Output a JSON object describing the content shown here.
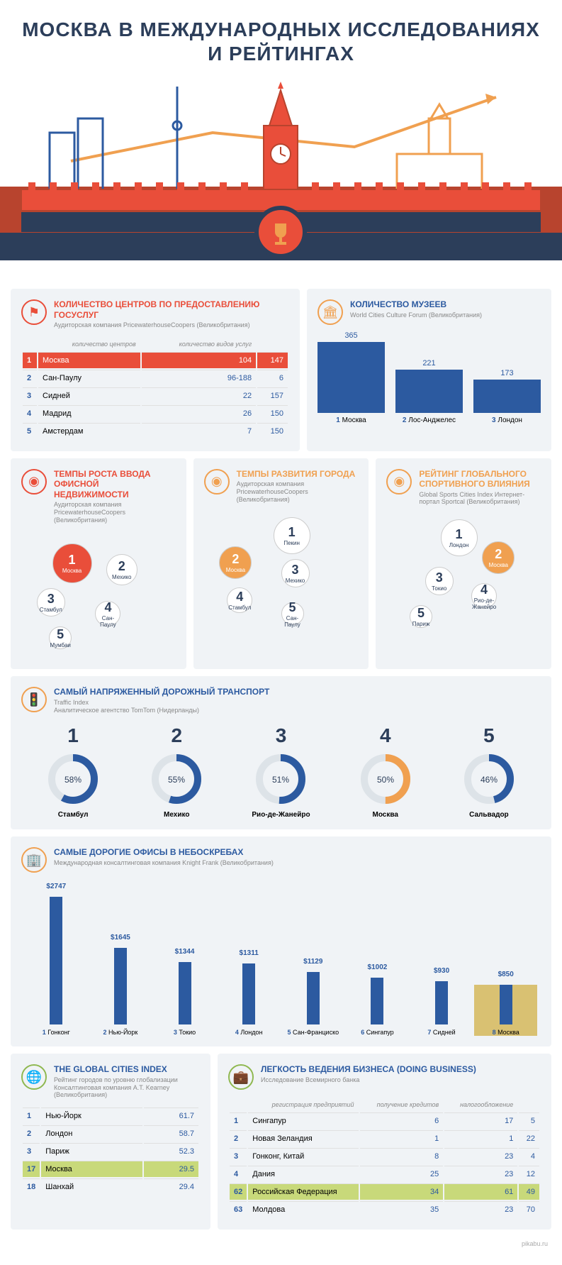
{
  "title": "МОСКВА В МЕЖДУНАРОДНЫХ ИССЛЕДОВАНИЯХ И РЕЙТИНГАХ",
  "colors": {
    "navy": "#2c3e5a",
    "blue": "#2c5aa0",
    "red": "#e94e3a",
    "orange": "#f0a050",
    "gold": "#d9c172",
    "green": "#c8d97a",
    "lightbg": "#f0f3f6",
    "grey": "#888"
  },
  "centers": {
    "title": "КОЛИЧЕСТВО ЦЕНТРОВ ПО ПРЕДОСТАВЛЕНИЮ ГОСУСЛУГ",
    "sub": "Аудиторская компания PricewaterhouseCoopers (Великобритания)",
    "icon_color": "#e94e3a",
    "cols": [
      "",
      "количество центров",
      "количество видов услуг"
    ],
    "rows": [
      {
        "n": 1,
        "city": "Москва",
        "a": "104",
        "b": "147",
        "hl": true
      },
      {
        "n": 2,
        "city": "Сан-Паулу",
        "a": "96-188",
        "b": "6"
      },
      {
        "n": 3,
        "city": "Сидней",
        "a": "22",
        "b": "157"
      },
      {
        "n": 4,
        "city": "Мадрид",
        "a": "26",
        "b": "150"
      },
      {
        "n": 5,
        "city": "Амстердам",
        "a": "7",
        "b": "150"
      }
    ]
  },
  "museums": {
    "title": "КОЛИЧЕСТВО МУЗЕЕВ",
    "sub": "World Cities Culture Forum (Великобритания)",
    "icon_color": "#f0a050",
    "max": 365,
    "bars": [
      {
        "n": 1,
        "city": "Москва",
        "v": 365
      },
      {
        "n": 2,
        "city": "Лос-Анджелес",
        "v": 221
      },
      {
        "n": 3,
        "city": "Лондон",
        "v": 173
      }
    ]
  },
  "bubbles": [
    {
      "title": "ТЕМПЫ РОСТА ВВОДА ОФИСНОЙ НЕДВИЖИМОСТИ",
      "sub": "Аудиторская компания PricewaterhouseCoopers (Великобритания)",
      "icon_color": "#e94e3a",
      "items": [
        {
          "r": 1,
          "city": "Москва",
          "x": 20,
          "y": 10,
          "size": 56,
          "fill": "#e94e3a",
          "fc": "#fff"
        },
        {
          "r": 2,
          "city": "Мехико",
          "x": 55,
          "y": 18,
          "size": 44,
          "fill": "#fff",
          "fc": "#2c3e5a"
        },
        {
          "r": 3,
          "city": "Стамбул",
          "x": 10,
          "y": 45,
          "size": 40,
          "fill": "#fff",
          "fc": "#2c3e5a"
        },
        {
          "r": 4,
          "city": "Сан-Паулу",
          "x": 48,
          "y": 55,
          "size": 36,
          "fill": "#fff",
          "fc": "#2c3e5a"
        },
        {
          "r": 5,
          "city": "Мумбаи",
          "x": 18,
          "y": 75,
          "size": 32,
          "fill": "#fff",
          "fc": "#2c3e5a"
        }
      ]
    },
    {
      "title": "ТЕМПЫ РАЗВИТИЯ ГОРОДА",
      "sub": "Аудиторская компания PricewaterhouseCoopers (Великобритания)",
      "icon_color": "#f0a050",
      "items": [
        {
          "r": 1,
          "city": "Пекин",
          "x": 45,
          "y": 5,
          "size": 52,
          "fill": "#fff",
          "fc": "#2c3e5a"
        },
        {
          "r": 2,
          "city": "Москва",
          "x": 10,
          "y": 28,
          "size": 46,
          "fill": "#f0a050",
          "fc": "#fff"
        },
        {
          "r": 3,
          "city": "Мехико",
          "x": 50,
          "y": 38,
          "size": 40,
          "fill": "#fff",
          "fc": "#2c3e5a"
        },
        {
          "r": 4,
          "city": "Стамбул",
          "x": 15,
          "y": 60,
          "size": 36,
          "fill": "#fff",
          "fc": "#2c3e5a"
        },
        {
          "r": 5,
          "city": "Сан-Паулу",
          "x": 50,
          "y": 72,
          "size": 32,
          "fill": "#fff",
          "fc": "#2c3e5a"
        }
      ]
    },
    {
      "title": "РЕЙТИНГ ГЛОБАЛЬНОГО СПОРТИВНОГО ВЛИЯНИЯ",
      "sub": "Global Sports Cities Index Интернет-портал Sportcal (Великобритания)",
      "icon_color": "#f0a050",
      "items": [
        {
          "r": 1,
          "city": "Лондон",
          "x": 35,
          "y": 5,
          "size": 52,
          "fill": "#fff",
          "fc": "#2c3e5a"
        },
        {
          "r": 2,
          "city": "Москва",
          "x": 62,
          "y": 22,
          "size": 46,
          "fill": "#f0a050",
          "fc": "#fff"
        },
        {
          "r": 3,
          "city": "Токио",
          "x": 25,
          "y": 42,
          "size": 40,
          "fill": "#fff",
          "fc": "#2c3e5a"
        },
        {
          "r": 4,
          "city": "Рио-де-Жанейро",
          "x": 55,
          "y": 55,
          "size": 36,
          "fill": "#fff",
          "fc": "#2c3e5a"
        },
        {
          "r": 5,
          "city": "Париж",
          "x": 15,
          "y": 72,
          "size": 32,
          "fill": "#fff",
          "fc": "#2c3e5a"
        }
      ]
    }
  ],
  "traffic": {
    "title": "САМЫЙ НАПРЯЖЕННЫЙ ДОРОЖНЫЙ ТРАНСПОРТ",
    "sub": "Traffic Index\nАналитическое агентство TomTom (Нидерланды)",
    "icon_color": "#f0a050",
    "ring_default": "#2c5aa0",
    "ring_hl": "#f0a050",
    "ring_bg": "#dde3e8",
    "items": [
      {
        "r": 1,
        "city": "Стамбул",
        "pct": 58
      },
      {
        "r": 2,
        "city": "Мехико",
        "pct": 55
      },
      {
        "r": 3,
        "city": "Рио-де-Жанейро",
        "pct": 51
      },
      {
        "r": 4,
        "city": "Москва",
        "pct": 50,
        "hl": true
      },
      {
        "r": 5,
        "city": "Сальвадор",
        "pct": 46
      }
    ]
  },
  "offices": {
    "title": "САМЫЕ ДОРОГИЕ ОФИСЫ В НЕБОСКРЕБАХ",
    "sub": "Международная консалтинговая компания Knight Frank (Великобритания)",
    "icon_color": "#f0a050",
    "max": 2747,
    "height": 180,
    "bars": [
      {
        "n": 1,
        "city": "Гонконг",
        "v": 2747
      },
      {
        "n": 2,
        "city": "Нью-Йорк",
        "v": 1645
      },
      {
        "n": 3,
        "city": "Токио",
        "v": 1344
      },
      {
        "n": 4,
        "city": "Лондон",
        "v": 1311
      },
      {
        "n": 5,
        "city": "Сан-Франциско",
        "v": 1129
      },
      {
        "n": 6,
        "city": "Сингапур",
        "v": 1002
      },
      {
        "n": 7,
        "city": "Сидней",
        "v": 930
      },
      {
        "n": 8,
        "city": "Москва",
        "v": 850,
        "hl": true
      }
    ]
  },
  "gci": {
    "title": "THE GLOBAL CITIES INDEX",
    "sub": "Рейтинг городов по уровню глобализации\nКонсалтинговая компания A.T. Kearney (Великобритания)",
    "icon_color": "#8fb850",
    "rows": [
      {
        "n": 1,
        "city": "Нью-Йорк",
        "v": "61.7"
      },
      {
        "n": 2,
        "city": "Лондон",
        "v": "58.7"
      },
      {
        "n": 3,
        "city": "Париж",
        "v": "52.3"
      },
      {
        "n": 17,
        "city": "Москва",
        "v": "29.5",
        "hl": true
      },
      {
        "n": 18,
        "city": "Шанхай",
        "v": "29.4"
      }
    ]
  },
  "biz": {
    "title": "ЛЕГКОСТЬ ВЕДЕНИЯ БИЗНЕСА (DOING BUSINESS)",
    "sub": "Исследование Всемирного банка",
    "icon_color": "#8fb850",
    "cols": [
      "",
      "регистрация предприятий",
      "получение кредитов",
      "налогообложение"
    ],
    "rows": [
      {
        "n": 1,
        "city": "Сингапур",
        "a": "6",
        "b": "17",
        "c": "5"
      },
      {
        "n": 2,
        "city": "Новая Зеландия",
        "a": "1",
        "b": "1",
        "c": "22"
      },
      {
        "n": 3,
        "city": "Гонконг, Китай",
        "a": "8",
        "b": "23",
        "c": "4"
      },
      {
        "n": 4,
        "city": "Дания",
        "a": "25",
        "b": "23",
        "c": "12"
      },
      {
        "n": 62,
        "city": "Российская Федерация",
        "a": "34",
        "b": "61",
        "c": "49",
        "hl": true
      },
      {
        "n": 63,
        "city": "Молдова",
        "a": "35",
        "b": "23",
        "c": "70"
      }
    ]
  },
  "footer": "pikabu.ru"
}
